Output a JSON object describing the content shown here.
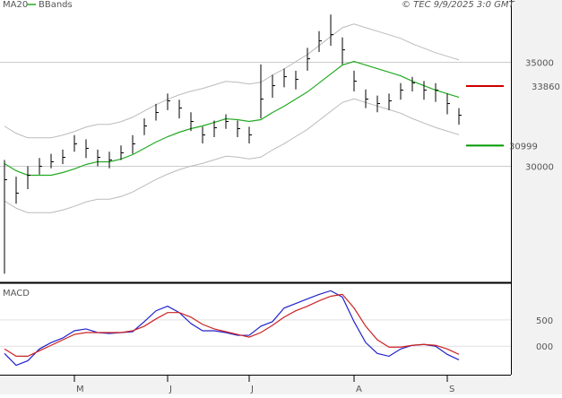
{
  "chart_data": [
    {
      "type": "ohlc",
      "credit": "© TEC 9/9/2025 3:0 GMT",
      "categories": [
        null,
        null,
        null,
        null,
        null,
        null,
        "M",
        null,
        null,
        null,
        null,
        null,
        null,
        null,
        "J",
        null,
        null,
        null,
        null,
        null,
        null,
        "J",
        null,
        null,
        null,
        null,
        null,
        null,
        null,
        null,
        "A",
        null,
        null,
        null,
        null,
        null,
        null,
        null,
        "S",
        null
      ],
      "high": [
        30300,
        29500,
        30000,
        30400,
        30600,
        30800,
        31500,
        31300,
        30800,
        30700,
        31000,
        31500,
        32300,
        33000,
        33500,
        33200,
        32600,
        31900,
        32200,
        32500,
        32200,
        31900,
        34900,
        34400,
        34700,
        34600,
        35700,
        36500,
        37300,
        36200,
        34600,
        33700,
        33400,
        33500,
        34000,
        34300,
        34100,
        34000,
        33500,
        32800
      ],
      "low": [
        24828,
        28200,
        28900,
        29600,
        29900,
        30100,
        30700,
        30400,
        30000,
        29900,
        30300,
        30600,
        31500,
        32200,
        32700,
        32300,
        31700,
        31100,
        31400,
        31800,
        31400,
        31100,
        32300,
        33300,
        33800,
        33700,
        34600,
        35500,
        35800,
        34900,
        33600,
        32800,
        32600,
        32700,
        33200,
        33600,
        33200,
        33100,
        32500,
        32000
      ],
      "close": [
        29353,
        28707,
        29569,
        30000,
        30216,
        30431,
        31078,
        30862,
        30431,
        30302,
        30647,
        31078,
        31940,
        32586,
        33147,
        32802,
        32155,
        31509,
        31853,
        32155,
        31810,
        31509,
        33233,
        33879,
        34310,
        34181,
        35172,
        36034,
        36336,
        35603,
        34095,
        33233,
        33017,
        33147,
        33664,
        34009,
        33664,
        33664,
        33017,
        32457
      ],
      "bar_color": "#000000",
      "series": [
        {
          "name": "MA20",
          "color": "#22aa22",
          "values": [
            30129,
            29784,
            29569,
            29569,
            29569,
            29698,
            29871,
            30086,
            30216,
            30216,
            30345,
            30560,
            30862,
            31164,
            31422,
            31638,
            31810,
            31940,
            32112,
            32284,
            32241,
            32155,
            32241,
            32586,
            32888,
            33233,
            33577,
            34008,
            34440,
            34870,
            35043,
            34870,
            34698,
            34526,
            34353,
            34095,
            33879,
            33664,
            33491,
            33319
          ]
        },
        {
          "name": "BBands",
          "color": "#bbbbbb",
          "upper": [
            31929,
            31584,
            31369,
            31369,
            31369,
            31498,
            31671,
            31886,
            32016,
            32016,
            32145,
            32360,
            32662,
            32964,
            33222,
            33438,
            33610,
            33740,
            33912,
            34084,
            34041,
            33955,
            34041,
            34386,
            34688,
            35033,
            35377,
            35808,
            36240,
            36670,
            36843,
            36670,
            36498,
            36326,
            36153,
            35895,
            35679,
            35464,
            35291,
            35119
          ],
          "lower": [
            28329,
            27984,
            27769,
            27769,
            27769,
            27898,
            28071,
            28286,
            28416,
            28416,
            28545,
            28760,
            29062,
            29364,
            29622,
            29838,
            30010,
            30140,
            30312,
            30484,
            30441,
            30355,
            30441,
            30786,
            31088,
            31433,
            31777,
            32208,
            32640,
            33070,
            33243,
            33070,
            32898,
            32726,
            32553,
            32295,
            32079,
            31864,
            31691,
            31519
          ]
        }
      ],
      "levels": [
        {
          "value": 33860,
          "color": "#cc0000"
        },
        {
          "value": 30999,
          "color": "#009900"
        }
      ],
      "ylim": [
        24500,
        38000
      ],
      "yticks": [
        30000,
        35000
      ],
      "grid": true
    },
    {
      "type": "line",
      "title": "MACD",
      "series": [
        {
          "color": "#2222cc",
          "values": [
            -138,
            -362,
            -276,
            -52,
            69,
            155,
            293,
            328,
            259,
            241,
            259,
            276,
            466,
            672,
            759,
            638,
            431,
            293,
            293,
            259,
            207,
            207,
            379,
            466,
            724,
            810,
            897,
            983,
            1052,
            931,
            466,
            69,
            -138,
            -190,
            -52,
            17,
            34,
            0,
            -155,
            -259
          ]
        },
        {
          "color": "#cc2222",
          "values": [
            -52,
            -190,
            -190,
            -86,
            17,
            121,
            224,
            259,
            259,
            259,
            259,
            293,
            379,
            517,
            638,
            638,
            552,
            414,
            328,
            276,
            224,
            172,
            259,
            397,
            552,
            672,
            759,
            862,
            948,
            983,
            724,
            379,
            121,
            -17,
            -17,
            17,
            34,
            17,
            -52,
            -155
          ]
        }
      ],
      "ylim": [
        -540,
        1160
      ],
      "yticks": [
        {
          "value": 0,
          "label": "000"
        },
        500
      ],
      "grid": true
    }
  ]
}
